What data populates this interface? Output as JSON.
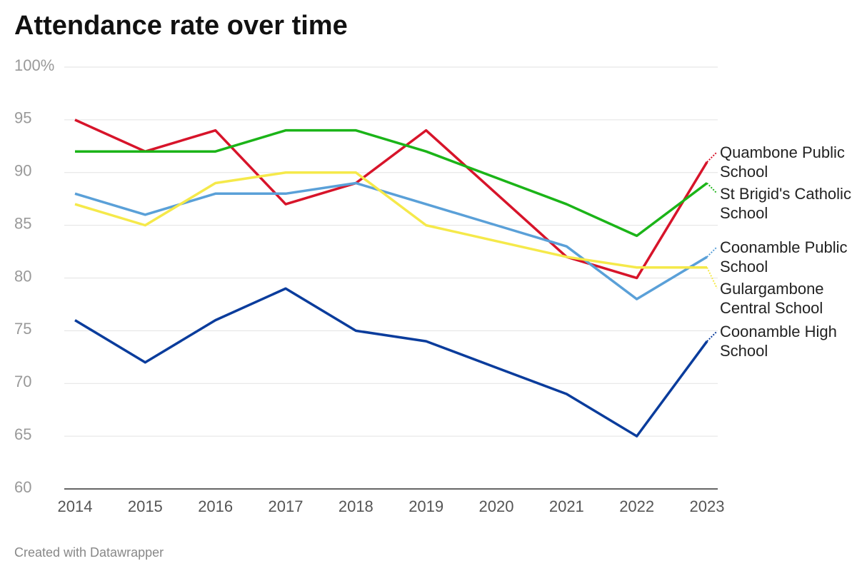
{
  "chart_data": {
    "type": "line",
    "title": "Attendance rate over time",
    "categories": [
      "2014",
      "2015",
      "2016",
      "2017",
      "2018",
      "2019",
      "2020",
      "2021",
      "2022",
      "2023"
    ],
    "series": [
      {
        "name": "Quambone Public School",
        "color": "#d7142a",
        "values": [
          95,
          92,
          94,
          87,
          89,
          94,
          88,
          82,
          80,
          91
        ]
      },
      {
        "name": "St Brigid's Catholic School",
        "color": "#1bb418",
        "values": [
          92,
          92,
          92,
          94,
          94,
          92,
          89.5,
          87,
          84,
          89
        ]
      },
      {
        "name": "Coonamble Public School",
        "color": "#5aa0d8",
        "values": [
          88,
          86,
          88,
          88,
          89,
          87,
          85,
          83,
          78,
          82
        ]
      },
      {
        "name": "Gulargambone Central School",
        "color": "#f5e94a",
        "values": [
          87,
          85,
          89,
          90,
          90,
          85,
          83.5,
          82,
          81,
          81
        ]
      },
      {
        "name": "Coonamble High School",
        "color": "#0a3c9c",
        "values": [
          76,
          72,
          76,
          79,
          75,
          74,
          71.5,
          69,
          65,
          74
        ]
      }
    ],
    "ylim": [
      60,
      100
    ],
    "yticks": [
      60,
      65,
      70,
      75,
      80,
      85,
      90,
      95,
      {
        "value": 100,
        "label": "100%"
      }
    ],
    "grid": true,
    "footer": "Created with Datawrapper"
  }
}
